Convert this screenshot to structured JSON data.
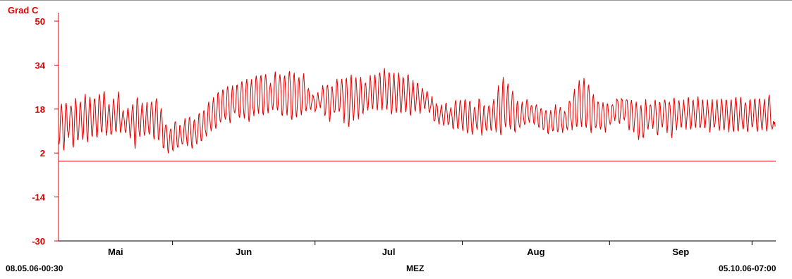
{
  "chart_data": {
    "type": "line",
    "ylabel": "Grad C",
    "y_ticks": [
      "50",
      "34",
      "18",
      "2",
      "-14",
      "-30"
    ],
    "ylim": [
      -30,
      50
    ],
    "x_month_labels": [
      "Mai",
      "Jun",
      "Jul",
      "Aug",
      "Sep"
    ],
    "x_start": "08.05.06-00:30",
    "x_end": "05.10.06-07:00",
    "x_unit": "MEZ",
    "reference_line": -1,
    "series": [
      {
        "name": "",
        "daily_min": [
          5,
          3,
          8,
          4,
          6,
          7,
          6,
          8,
          7,
          9,
          9,
          8,
          9,
          10,
          10,
          8,
          4,
          8,
          8,
          9,
          7,
          6,
          3,
          2,
          3,
          4,
          5,
          5,
          4,
          5,
          6,
          8,
          10,
          11,
          13,
          14,
          13,
          16,
          15,
          15,
          13,
          16,
          17,
          16,
          17,
          18,
          18,
          15,
          16,
          14,
          15,
          16,
          17,
          18,
          17,
          19,
          15,
          14,
          16,
          17,
          13,
          11,
          14,
          15,
          16,
          17,
          18,
          18,
          18,
          17,
          16,
          16,
          16,
          16,
          16,
          17,
          17,
          18,
          17,
          13,
          13,
          12,
          12,
          11,
          11,
          10,
          9,
          9,
          10,
          9,
          10,
          10,
          10,
          8,
          11,
          11,
          9,
          11,
          12,
          13,
          12,
          11,
          10,
          9,
          10,
          10,
          10,
          10,
          11,
          11,
          11,
          11,
          10,
          11,
          11,
          10,
          12,
          14,
          13,
          14,
          11,
          10,
          7,
          7,
          10,
          11,
          9,
          11,
          10,
          8,
          11,
          11,
          11,
          11,
          11,
          11,
          11,
          10,
          11,
          10,
          10,
          10,
          10,
          10,
          10,
          10,
          11,
          10,
          10,
          10,
          11
        ],
        "daily_max": [
          20,
          21,
          20,
          22,
          21,
          23,
          23,
          22,
          24,
          24,
          20,
          22,
          24,
          17,
          18,
          20,
          23,
          20,
          20,
          21,
          22,
          18,
          13,
          11,
          14,
          12,
          14,
          15,
          15,
          17,
          18,
          20,
          22,
          24,
          25,
          26,
          26,
          27,
          28,
          29,
          29,
          30,
          30,
          31,
          28,
          31,
          31,
          30,
          32,
          31,
          30,
          31,
          25,
          23,
          24,
          26,
          27,
          27,
          29,
          29,
          30,
          30,
          30,
          29,
          28,
          30,
          31,
          32,
          33,
          32,
          31,
          31,
          30,
          31,
          28,
          28,
          26,
          25,
          22,
          20,
          19,
          20,
          18,
          21,
          21,
          22,
          21,
          19,
          22,
          19,
          20,
          22,
          26,
          29,
          27,
          25,
          21,
          20,
          22,
          20,
          20,
          19,
          17,
          17,
          19,
          19,
          17,
          21,
          25,
          28,
          29,
          27,
          23,
          21,
          20,
          20,
          20,
          22,
          22,
          22,
          21,
          21,
          20,
          21,
          20,
          21,
          21,
          22,
          21,
          22,
          21,
          21,
          22,
          21,
          22,
          21,
          21,
          21,
          22,
          22,
          22,
          22,
          22,
          22,
          21,
          22,
          22,
          22,
          21,
          24,
          13
        ]
      }
    ]
  },
  "colors": {
    "series": "#e00000",
    "axis": "#e00000",
    "ticks": "#000000"
  }
}
